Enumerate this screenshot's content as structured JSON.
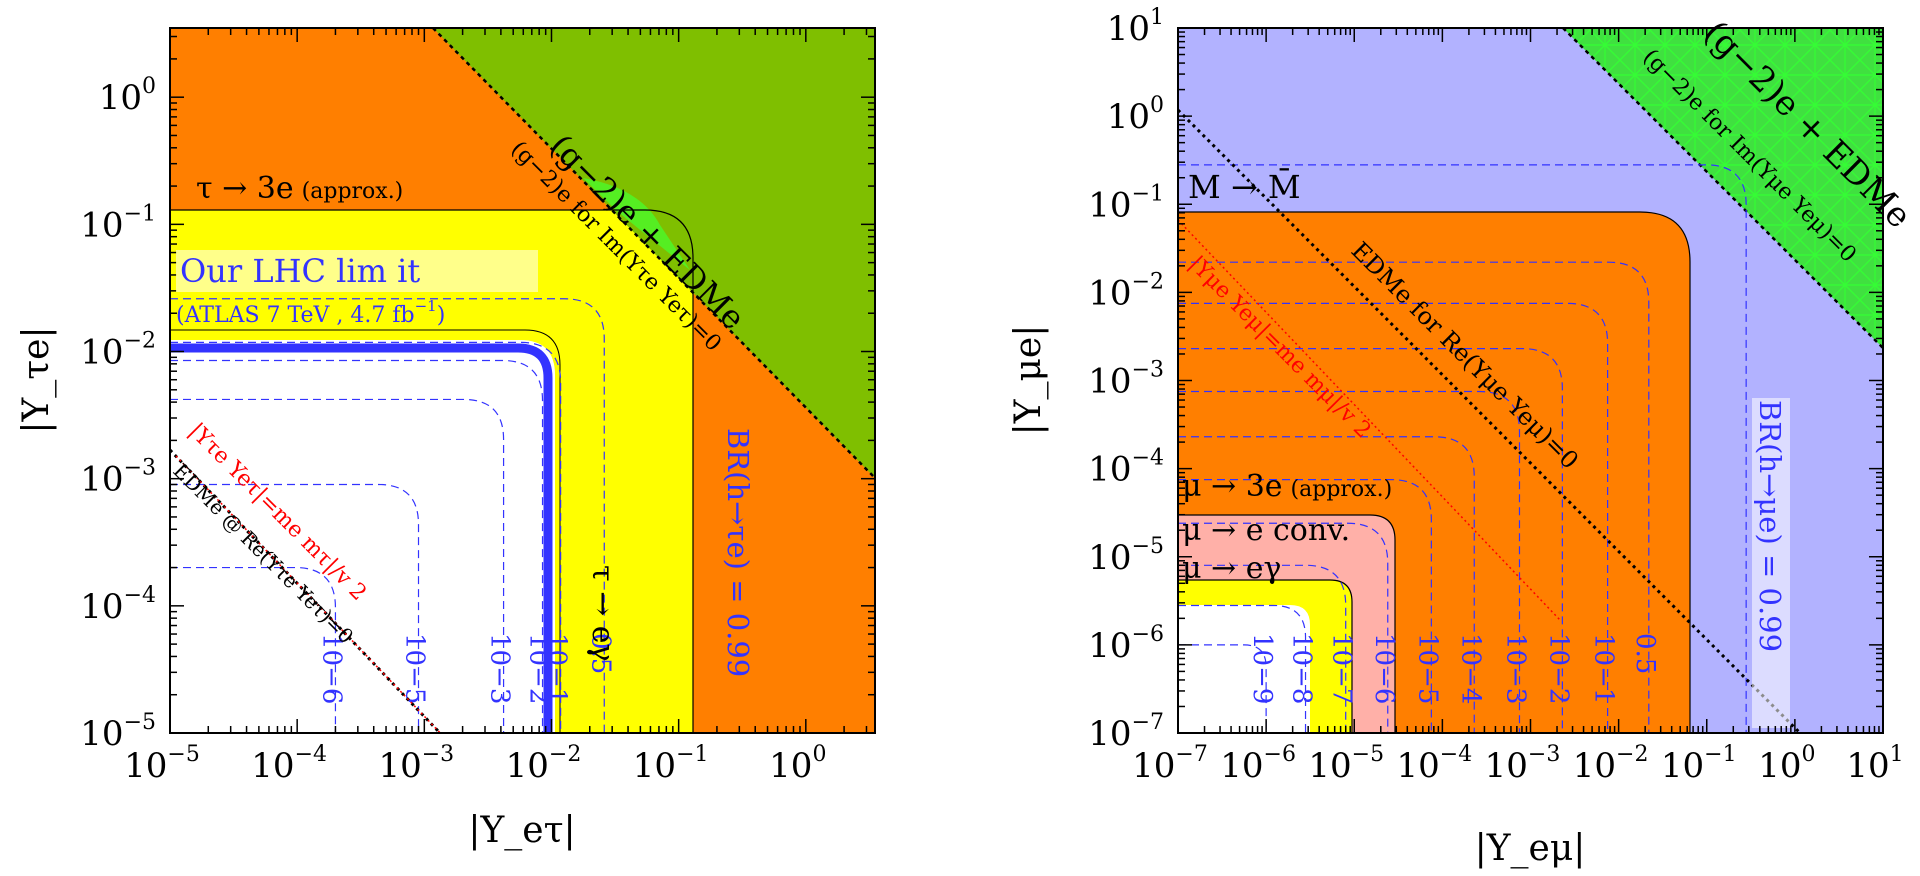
{
  "colors": {
    "orange": "#ff7f00",
    "olive_green": "#7fbf00",
    "bright_green": "#40e040",
    "yellow": "#ffff00",
    "pink": "#ffb0a8",
    "lavender": "#b2b2ff",
    "blue_line": "#3333ff",
    "red": "#ff0000"
  },
  "chart_data": [
    {
      "type": "contour",
      "xlabel": "|Y_eτ|",
      "ylabel": "|Y_τe|",
      "xscale": "log",
      "yscale": "log",
      "xlim": [
        1e-05,
        3.5
      ],
      "ylim": [
        1e-05,
        3.5
      ],
      "x_ticks": [
        {
          "base": "10",
          "exp": "−5",
          "value": 1e-05
        },
        {
          "base": "10",
          "exp": "−4",
          "value": 0.0001
        },
        {
          "base": "10",
          "exp": "−3",
          "value": 0.001
        },
        {
          "base": "10",
          "exp": "−2",
          "value": 0.01
        },
        {
          "base": "10",
          "exp": "−1",
          "value": 0.1
        },
        {
          "base": "10",
          "exp": "0",
          "value": 1
        }
      ],
      "y_ticks": [
        {
          "base": "10",
          "exp": "−5",
          "value": 1e-05
        },
        {
          "base": "10",
          "exp": "−4",
          "value": 0.0001
        },
        {
          "base": "10",
          "exp": "−3",
          "value": 0.001
        },
        {
          "base": "10",
          "exp": "−2",
          "value": 0.01
        },
        {
          "base": "10",
          "exp": "−1",
          "value": 0.1
        },
        {
          "base": "10",
          "exp": "0",
          "value": 1
        }
      ],
      "regions": [
        {
          "name": "BR(h→τe) = 0.99",
          "color": "#ff7f00",
          "boundary": "l-shape",
          "corner": 0.12
        },
        {
          "name": "τ → eγ",
          "color": "#ffff00",
          "boundary": "l-shape",
          "corner": 0.12
        },
        {
          "name": "(g−2)e + EDMe",
          "color": "#7fbf00",
          "boundary": "diagonal",
          "product": 0.0095
        }
      ],
      "lhc_limit": {
        "label": "Our LHC lim it",
        "sublabel": "(ATLAS 7 TeV , 4.7 fb",
        "sublabel_exp": "−1",
        "sublabel_end": ")",
        "corner": 0.0105
      },
      "br_contours": [
        {
          "label": "10−6",
          "corner": 0.0002
        },
        {
          "label": "10−5",
          "corner": 0.0009
        },
        {
          "label": "10−3",
          "corner": 0.0042
        },
        {
          "label": "10−2",
          "corner": 0.0085
        },
        {
          "label": "10−1",
          "corner": 0.0118
        },
        {
          "label": "0.5",
          "corner": 0.026
        }
      ],
      "annotations": {
        "tau3e": "τ → 3e",
        "tau3e_note": "(approx.)",
        "tau_egamma": "τ → eγ",
        "br_h": "BR(h→τe) = 0.99",
        "g2_edm": "(g−2)e + EDMe",
        "g2_im": "(g−2)e for Im(Yτe Yeτ)=0",
        "red_line": "|Yτe Yeτ|=me mτ|/v 2",
        "edm_re": "EDMe @ Re(Yτe Yeτ)=0"
      }
    },
    {
      "type": "contour",
      "xlabel": "|Y_eμ|",
      "ylabel": "|Y_μe|",
      "xscale": "log",
      "yscale": "log",
      "xlim": [
        1e-07,
        10
      ],
      "ylim": [
        1e-07,
        10
      ],
      "x_ticks": [
        {
          "base": "10",
          "exp": "−7",
          "value": 1e-07
        },
        {
          "base": "10",
          "exp": "−6",
          "value": 1e-06
        },
        {
          "base": "10",
          "exp": "−5",
          "value": 1e-05
        },
        {
          "base": "10",
          "exp": "−4",
          "value": 0.0001
        },
        {
          "base": "10",
          "exp": "−3",
          "value": 0.001
        },
        {
          "base": "10",
          "exp": "−2",
          "value": 0.01
        },
        {
          "base": "10",
          "exp": "−1",
          "value": 0.1
        },
        {
          "base": "10",
          "exp": "0",
          "value": 1
        },
        {
          "base": "10",
          "exp": "1",
          "value": 10
        }
      ],
      "y_ticks": [
        {
          "base": "10",
          "exp": "−7",
          "value": 1e-07
        },
        {
          "base": "10",
          "exp": "−6",
          "value": 1e-06
        },
        {
          "base": "10",
          "exp": "−5",
          "value": 1e-05
        },
        {
          "base": "10",
          "exp": "−4",
          "value": 0.0001
        },
        {
          "base": "10",
          "exp": "−3",
          "value": 0.001
        },
        {
          "base": "10",
          "exp": "−2",
          "value": 0.01
        },
        {
          "base": "10",
          "exp": "−1",
          "value": 0.1
        },
        {
          "base": "10",
          "exp": "0",
          "value": 1
        },
        {
          "base": "10",
          "exp": "1",
          "value": 10
        }
      ],
      "regions": [
        {
          "name": "BR(h→μe) = 0.99",
          "color": "#b2b2ff",
          "boundary": "l-shape",
          "corner": 0.08
        },
        {
          "name": "μ → 3e",
          "color": "#ff7f00",
          "boundary": "l-shape",
          "corner": 0.08
        },
        {
          "name": "μ → e conv.",
          "color": "#ffb0a8",
          "boundary": "l-shape",
          "corner": 2.5e-05
        },
        {
          "name": "μ → eγ",
          "color": "#ffff00",
          "boundary": "l-shape",
          "corner": 4e-06
        },
        {
          "name": "(g−2)e + EDMe",
          "color": "#40e040",
          "boundary": "diagonal",
          "product": 0.6
        }
      ],
      "br_contours": [
        {
          "label": "10−9",
          "corner": 1e-06
        },
        {
          "label": "10−8",
          "corner": 2.8e-06
        },
        {
          "label": "10−7",
          "corner": 8e-06
        },
        {
          "label": "10−6",
          "corner": 2.4e-05
        },
        {
          "label": "10−5",
          "corner": 7.5e-05
        },
        {
          "label": "10−4",
          "corner": 0.00023
        },
        {
          "label": "10−3",
          "corner": 0.00075
        },
        {
          "label": "10−2",
          "corner": 0.0023
        },
        {
          "label": "10−1",
          "corner": 0.0075
        },
        {
          "label": "0.5",
          "corner": 0.022
        },
        {
          "label": "",
          "corner": 0.28
        }
      ],
      "annotations": {
        "mmbar": "M → M̄",
        "mu3e": "μ → 3e",
        "mu3e_note": "(approx.)",
        "mu_conv": "μ → e conv.",
        "mu_egamma": "μ → eγ",
        "br_h": "BR(h→μe) = 0.99",
        "g2_edm": "(g−2)e + EDMe",
        "g2_im": "(g−2)e for Im(Yμe Yeμ)=0",
        "edm_re": "EDMe for Re(Yμe Yeμ)=0",
        "red_line": "|Yμe Yeμ|=me mμ|/v 2"
      }
    }
  ]
}
